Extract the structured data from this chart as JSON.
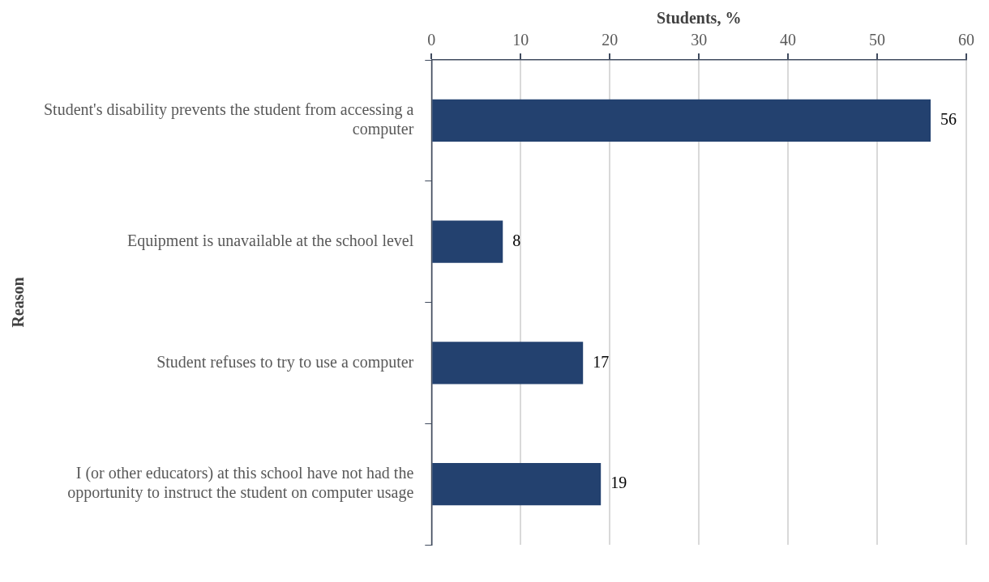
{
  "chart_data": {
    "type": "bar",
    "orientation": "horizontal",
    "xlabel": "Students, %",
    "ylabel": "Reason",
    "categories": [
      "Student's disability prevents the student from accessing a computer",
      "Equipment is unavailable at the school level",
      "Student refuses to try to use a computer",
      "I (or other educators) at this school have not had the opportunity to instruct the student on computer usage"
    ],
    "values": [
      56,
      8,
      17,
      19
    ],
    "color": "#23416f",
    "data_labels": true,
    "xlim": [
      0,
      60
    ],
    "xticks": [
      0,
      10,
      20,
      30,
      40,
      50,
      60
    ],
    "grid": "x",
    "legend": false
  }
}
